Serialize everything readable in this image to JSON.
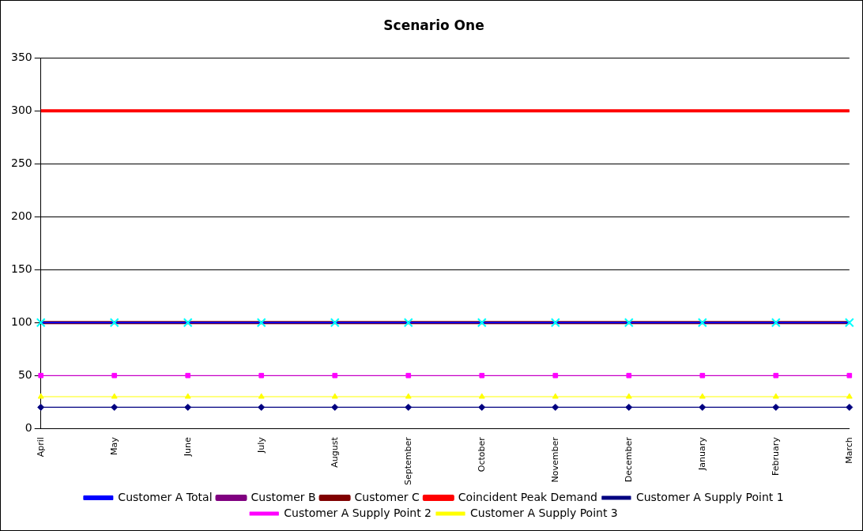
{
  "chart_data": {
    "type": "line",
    "title": "Scenario One",
    "categories": [
      "April",
      "May",
      "June",
      "July",
      "August",
      "September",
      "October",
      "November",
      "December",
      "January",
      "February",
      "March"
    ],
    "series": [
      {
        "name": "Customer A Total",
        "color": "#0000ff",
        "marker": "cross",
        "values": [
          100,
          100,
          100,
          100,
          100,
          100,
          100,
          100,
          100,
          100,
          100,
          100
        ]
      },
      {
        "name": "Customer B",
        "color": "#800080",
        "marker": "none",
        "values": [
          null,
          null,
          null,
          null,
          null,
          null,
          null,
          null,
          null,
          null,
          null,
          null
        ]
      },
      {
        "name": "Customer C",
        "color": "#800000",
        "marker": "none",
        "values": [
          100,
          100,
          100,
          100,
          100,
          100,
          100,
          100,
          100,
          100,
          100,
          100
        ]
      },
      {
        "name": "Coincident Peak Demand",
        "color": "#ff0000",
        "marker": "none",
        "values": [
          300,
          300,
          300,
          300,
          300,
          300,
          300,
          300,
          300,
          300,
          300,
          300
        ]
      },
      {
        "name": "Customer A Supply Point 1",
        "color": "#000080",
        "marker": "diamond",
        "values": [
          20,
          20,
          20,
          20,
          20,
          20,
          20,
          20,
          20,
          20,
          20,
          20
        ]
      },
      {
        "name": "Customer A Supply Point 2",
        "color": "#ff00ff",
        "marker": "square",
        "values": [
          50,
          50,
          50,
          50,
          50,
          50,
          50,
          50,
          50,
          50,
          50,
          50
        ]
      },
      {
        "name": "Customer A Supply Point 3",
        "color": "#ffff00",
        "marker": "triangle",
        "values": [
          30,
          30,
          30,
          30,
          30,
          30,
          30,
          30,
          30,
          30,
          30,
          30
        ]
      }
    ],
    "ylim": [
      0,
      350
    ],
    "yticks": [
      0,
      50,
      100,
      150,
      200,
      250,
      300,
      350
    ],
    "grid": "y",
    "legend": "bottom"
  }
}
